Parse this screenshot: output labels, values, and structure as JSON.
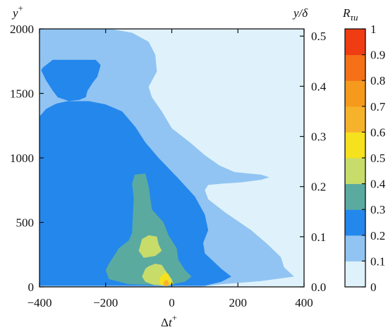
{
  "chart_data": {
    "type": "filled-contour",
    "x_axis": {
      "label_main": "Δt",
      "label_sup": "+",
      "lim": [
        -400,
        400
      ],
      "ticks": [
        -400,
        -200,
        0,
        200,
        400
      ],
      "tick_labels": [
        "−400",
        "−200",
        "0",
        "200",
        "400"
      ]
    },
    "y_axis_left": {
      "label_main": "y",
      "label_sup": "+",
      "lim": [
        0,
        2000
      ],
      "ticks": [
        0,
        500,
        1000,
        1500,
        2000
      ],
      "tick_labels": [
        "0",
        "500",
        "1000",
        "1500",
        "2000"
      ]
    },
    "y_axis_right": {
      "label": "y/δ",
      "lim": [
        0,
        0.5144
      ],
      "ticks": [
        0.0,
        0.1,
        0.2,
        0.3,
        0.4,
        0.5
      ],
      "tick_labels": [
        "0.0",
        "0.1",
        "0.2",
        "0.3",
        "0.4",
        "0.5"
      ]
    },
    "colorbar": {
      "label_main": "R",
      "label_sub": "τu",
      "levels": [
        0,
        0.1,
        0.2,
        0.3,
        0.4,
        0.5,
        0.6,
        0.7,
        0.8,
        0.9,
        1
      ],
      "tick_labels": [
        "0",
        "0.1",
        "0.2",
        "0.3",
        "0.4",
        "0.5",
        "0.6",
        "0.7",
        "0.8",
        "0.9",
        "1"
      ],
      "colors": [
        "#dff2fb",
        "#91c4f2",
        "#2487ec",
        "#5aaaa0",
        "#c8dc6a",
        "#f5e11d",
        "#f7b22c",
        "#f59a1d",
        "#f57017",
        "#f03c12"
      ]
    },
    "contours": [
      {
        "level": 0.1,
        "points": [
          [
            -400,
            2000
          ],
          [
            -380,
            2000
          ],
          [
            -280,
            2000
          ],
          [
            -185,
            2000
          ],
          [
            -120,
            1970
          ],
          [
            -70,
            1900
          ],
          [
            -50,
            1800
          ],
          [
            -45,
            1670
          ],
          [
            -70,
            1550
          ],
          [
            -60,
            1470
          ],
          [
            -30,
            1360
          ],
          [
            0,
            1230
          ],
          [
            55,
            1120
          ],
          [
            100,
            1020
          ],
          [
            145,
            940
          ],
          [
            190,
            890
          ],
          [
            230,
            880
          ],
          [
            270,
            870
          ],
          [
            295,
            850
          ],
          [
            270,
            830
          ],
          [
            210,
            810
          ],
          [
            150,
            800
          ],
          [
            110,
            790
          ],
          [
            100,
            750
          ],
          [
            110,
            680
          ],
          [
            160,
            580
          ],
          [
            240,
            440
          ],
          [
            290,
            330
          ],
          [
            330,
            230
          ],
          [
            340,
            150
          ],
          [
            370,
            80
          ],
          [
            270,
            45
          ],
          [
            150,
            20
          ],
          [
            80,
            0
          ],
          [
            -400,
            0
          ]
        ]
      },
      {
        "level": 0.2,
        "points": [
          [
            -400,
            1320
          ],
          [
            -380,
            1380
          ],
          [
            -350,
            1420
          ],
          [
            -315,
            1440
          ],
          [
            -280,
            1450
          ],
          [
            -260,
            1470
          ],
          [
            -255,
            1520
          ],
          [
            -240,
            1580
          ],
          [
            -225,
            1630
          ],
          [
            -215,
            1720
          ],
          [
            -230,
            1760
          ],
          [
            -290,
            1760
          ],
          [
            -360,
            1760
          ],
          [
            -390,
            1700
          ],
          [
            -395,
            1680
          ],
          [
            -380,
            1600
          ],
          [
            -360,
            1520
          ],
          [
            -345,
            1470
          ],
          [
            -310,
            1440
          ],
          [
            -250,
            1440
          ],
          [
            -200,
            1415
          ],
          [
            -150,
            1360
          ],
          [
            -110,
            1240
          ],
          [
            -80,
            1120
          ],
          [
            -40,
            1000
          ],
          [
            20,
            840
          ],
          [
            70,
            700
          ],
          [
            100,
            560
          ],
          [
            110,
            440
          ],
          [
            95,
            340
          ],
          [
            100,
            260
          ],
          [
            150,
            140
          ],
          [
            180,
            80
          ],
          [
            150,
            40
          ],
          [
            100,
            10
          ],
          [
            -400,
            10
          ]
        ]
      },
      {
        "level": 0.3,
        "points": [
          [
            -200,
            130
          ],
          [
            -190,
            180
          ],
          [
            -160,
            300
          ],
          [
            -130,
            360
          ],
          [
            -120,
            420
          ],
          [
            -118,
            540
          ],
          [
            -115,
            680
          ],
          [
            -120,
            800
          ],
          [
            -112,
            870
          ],
          [
            -80,
            880
          ],
          [
            -70,
            780
          ],
          [
            -60,
            600
          ],
          [
            -25,
            500
          ],
          [
            -10,
            400
          ],
          [
            15,
            300
          ],
          [
            20,
            210
          ],
          [
            40,
            130
          ],
          [
            60,
            80
          ],
          [
            40,
            40
          ],
          [
            0,
            20
          ],
          [
            -50,
            15
          ],
          [
            -130,
            20
          ],
          [
            -190,
            60
          ]
        ]
      },
      {
        "level": 0.4,
        "points": [
          [
            -100,
            280
          ],
          [
            -90,
            370
          ],
          [
            -70,
            400
          ],
          [
            -45,
            390
          ],
          [
            -40,
            330
          ],
          [
            -30,
            280
          ],
          [
            -50,
            240
          ],
          [
            -85,
            225
          ]
        ]
      },
      {
        "level": 0.4,
        "points": [
          [
            -80,
            140
          ],
          [
            -70,
            160
          ],
          [
            -50,
            180
          ],
          [
            -30,
            170
          ],
          [
            -20,
            130
          ],
          [
            0,
            60
          ],
          [
            5,
            20
          ],
          [
            -20,
            10
          ],
          [
            -55,
            15
          ],
          [
            -80,
            40
          ],
          [
            -90,
            80
          ]
        ]
      },
      {
        "level": 0.5,
        "points": [
          [
            -30,
            90
          ],
          [
            -20,
            110
          ],
          [
            -10,
            100
          ],
          [
            -5,
            60
          ],
          [
            0,
            20
          ],
          [
            -15,
            8
          ],
          [
            -35,
            20
          ],
          [
            -38,
            60
          ]
        ]
      },
      {
        "level": 0.6,
        "points": [
          [
            -25,
            40
          ],
          [
            -15,
            55
          ],
          [
            -8,
            30
          ],
          [
            -12,
            5
          ],
          [
            -24,
            8
          ]
        ]
      }
    ]
  }
}
